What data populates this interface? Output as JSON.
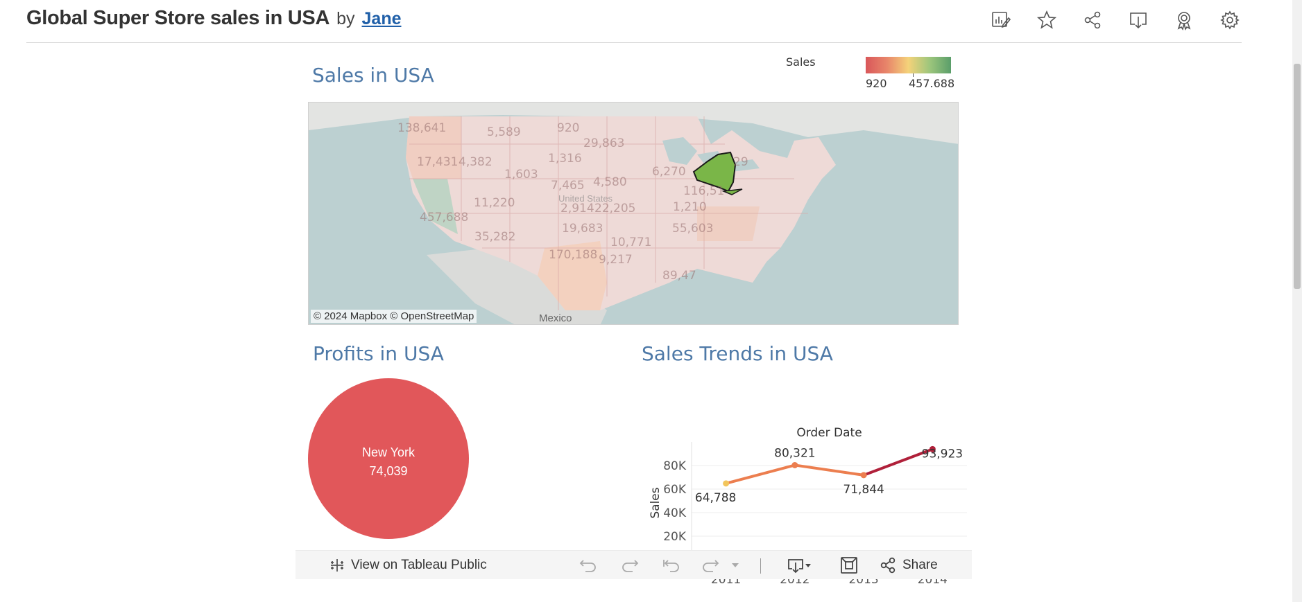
{
  "header": {
    "title": "Global Super Store sales in USA",
    "by_label": "by",
    "author": "Jane",
    "icons": [
      "edit-icon",
      "star-icon",
      "share-icon",
      "download-icon",
      "badge-icon",
      "settings-icon"
    ]
  },
  "dashboard": {
    "sales_title": "Sales in USA",
    "profits_title": "Profits in USA",
    "trends_title": "Sales Trends in USA",
    "legend": {
      "label": "Sales",
      "min": "920",
      "max": "457.688",
      "colors": [
        "#d9575a",
        "#e8866a",
        "#f4d27a",
        "#9dc67c",
        "#5a9e6a"
      ]
    },
    "map": {
      "attribution": "© 2024 Mapbox  © OpenStreetMap",
      "mexico": "Mexico",
      "highlight_state": "New York",
      "highlight_color": "#7ab648",
      "state_values": [
        "138,641",
        "5,589",
        "920",
        "29,863",
        "1,316",
        "17,431",
        "4,382",
        "1,603",
        "7,465",
        "4,580",
        "6,270",
        "29",
        "116,51",
        "11,220",
        "2,914",
        "22,205",
        "1,210",
        "457,688",
        "19,683",
        "55,603",
        "35,282",
        "10,771",
        "170,188",
        "9,217",
        "89,47"
      ],
      "united_states": "United States"
    },
    "pie": {
      "state": "New York",
      "value": "74,039",
      "color": "#e1575a"
    }
  },
  "chart_data": {
    "type": "line",
    "title": "Sales Trends in USA",
    "xlabel": "Order Date",
    "ylabel": "Sales",
    "x": [
      "2011",
      "2012",
      "2013",
      "2014"
    ],
    "series": [
      {
        "values": [
          64788,
          80321,
          71844,
          93923
        ]
      }
    ],
    "value_labels": [
      "64,788",
      "80,321",
      "71,844",
      "93,923"
    ],
    "yticks": [
      "20K",
      "40K",
      "60K",
      "80K"
    ],
    "ylim": [
      0,
      100000
    ],
    "grid": true,
    "colors": [
      "#f2c55c",
      "#ec7e4f",
      "#ec7e4f",
      "#b0203a"
    ]
  },
  "bottom_bar": {
    "view_on": "View on Tableau Public",
    "share": "Share"
  }
}
